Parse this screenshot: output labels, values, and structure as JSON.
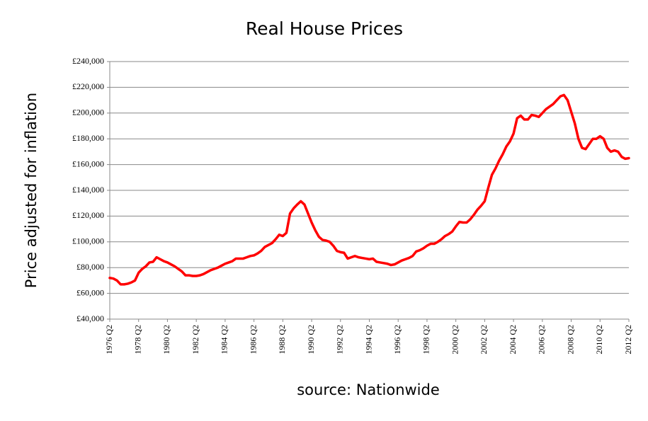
{
  "chart_data": {
    "type": "line",
    "title": "Real House Prices",
    "ylabel": "Price adjusted for inflation",
    "source": "source: Nationwide",
    "color": "#ff0000",
    "grid": true,
    "ylim": [
      40000,
      240000
    ],
    "yticks": [
      {
        "value": 40000,
        "label": "£40,000"
      },
      {
        "value": 60000,
        "label": "£60,000"
      },
      {
        "value": 80000,
        "label": "£80,000"
      },
      {
        "value": 100000,
        "label": "£100,000"
      },
      {
        "value": 120000,
        "label": "£120,000"
      },
      {
        "value": 140000,
        "label": "£140,000"
      },
      {
        "value": 160000,
        "label": "£160,000"
      },
      {
        "value": 180000,
        "label": "£180,000"
      },
      {
        "value": 200000,
        "label": "£200,000"
      },
      {
        "value": 220000,
        "label": "£220,000"
      },
      {
        "value": 240000,
        "label": "£240,000"
      }
    ],
    "categories": [
      "1976 Q2",
      null,
      null,
      null,
      null,
      null,
      null,
      null,
      "1978 Q2",
      null,
      null,
      null,
      null,
      null,
      null,
      null,
      "1980 Q2",
      null,
      null,
      null,
      null,
      null,
      null,
      null,
      "1982 Q2",
      null,
      null,
      null,
      null,
      null,
      null,
      null,
      "1984 Q2",
      null,
      null,
      null,
      null,
      null,
      null,
      null,
      "1986 Q2",
      null,
      null,
      null,
      null,
      null,
      null,
      null,
      "1988 Q2",
      null,
      null,
      null,
      null,
      null,
      null,
      null,
      "1990 Q2",
      null,
      null,
      null,
      null,
      null,
      null,
      null,
      "1992 Q2",
      null,
      null,
      null,
      null,
      null,
      null,
      null,
      "1994 Q2",
      null,
      null,
      null,
      null,
      null,
      null,
      null,
      "1996 Q2",
      null,
      null,
      null,
      null,
      null,
      null,
      null,
      "1998 Q2",
      null,
      null,
      null,
      null,
      null,
      null,
      null,
      "2000 Q2",
      null,
      null,
      null,
      null,
      null,
      null,
      null,
      "2002 Q2",
      null,
      null,
      null,
      null,
      null,
      null,
      null,
      "2004 Q2",
      null,
      null,
      null,
      null,
      null,
      null,
      null,
      "2006 Q2",
      null,
      null,
      null,
      null,
      null,
      null,
      null,
      "2008 Q2",
      null,
      null,
      null,
      null,
      null,
      null,
      null,
      "2010 Q2",
      null,
      null,
      null,
      null,
      null,
      null,
      null,
      "2012 Q2"
    ],
    "values": [
      72000,
      71500,
      70000,
      67000,
      67000,
      67500,
      68500,
      70000,
      76000,
      79000,
      81000,
      84000,
      84500,
      88000,
      86500,
      85000,
      84000,
      82500,
      81000,
      79000,
      77000,
      74000,
      74000,
      73500,
      73500,
      74000,
      75000,
      76500,
      78000,
      79000,
      80000,
      81500,
      83000,
      84000,
      85000,
      87000,
      87000,
      87000,
      88000,
      89000,
      89500,
      91000,
      93000,
      96000,
      97500,
      99000,
      102000,
      105500,
      104500,
      107000,
      122000,
      126000,
      129000,
      131500,
      129000,
      122000,
      115000,
      109000,
      104000,
      101500,
      101000,
      100000,
      97000,
      93000,
      92000,
      91500,
      87000,
      88000,
      89000,
      88000,
      87500,
      87000,
      86500,
      87000,
      84500,
      84000,
      83500,
      83000,
      82000,
      82500,
      84000,
      85500,
      86500,
      87500,
      89000,
      92500,
      93500,
      95000,
      97000,
      98500,
      98500,
      100000,
      102000,
      104500,
      106000,
      108000,
      112000,
      115500,
      115000,
      115000,
      117500,
      121000,
      125000,
      128000,
      131500,
      142000,
      152000,
      157000,
      163000,
      168000,
      174000,
      178000,
      184000,
      196000,
      198000,
      195000,
      195000,
      198500,
      198000,
      197000,
      200000,
      203000,
      205000,
      207000,
      210000,
      213000,
      214000,
      210000,
      201000,
      192000,
      180000,
      173000,
      172000,
      176000,
      180000,
      180000,
      182000,
      180000,
      173000,
      170000,
      171000,
      170000,
      166000,
      164500,
      165000
    ]
  }
}
